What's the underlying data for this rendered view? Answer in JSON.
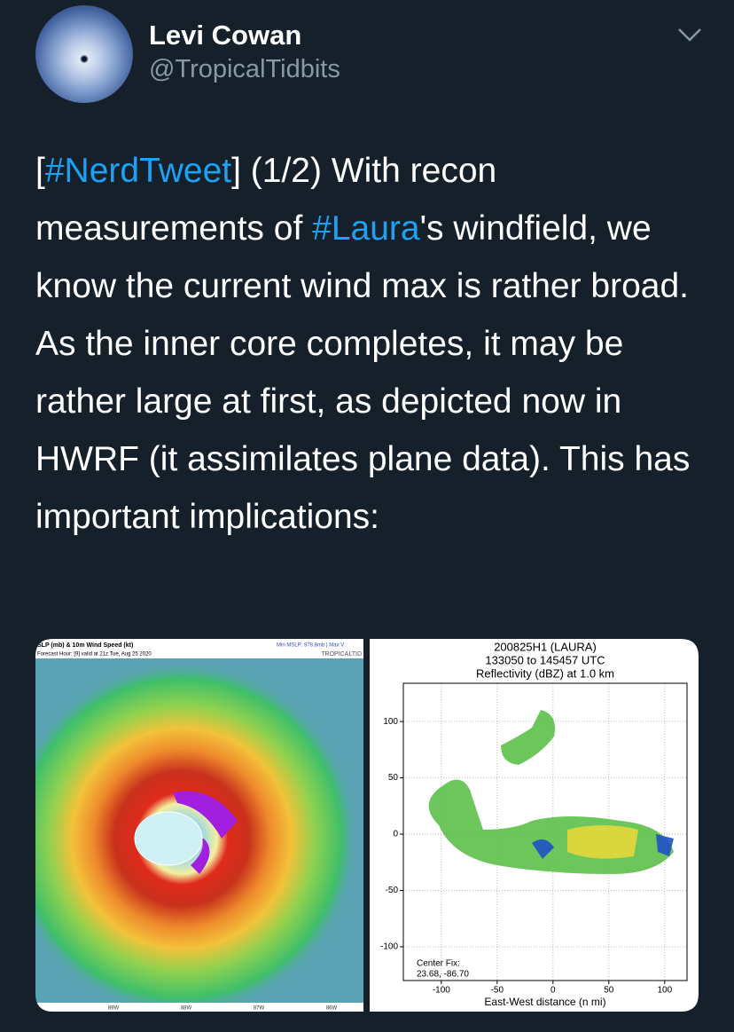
{
  "tweet": {
    "name": "Levi Cowan",
    "handle": "@TropicalTidbits",
    "text": [
      {
        "text": "[",
        "hashtag": false
      },
      {
        "text": "#NerdTweet",
        "hashtag": true
      },
      {
        "text": "] (1/2) With recon measurements of ",
        "hashtag": false
      },
      {
        "text": "#Laura",
        "hashtag": true
      },
      {
        "text": "'s windfield, we know the current wind max is rather broad. As the inner core completes, it may be rather large at first, as depicted now in HWRF (it assimilates plane data). This has important implications:",
        "hashtag": false
      }
    ]
  },
  "map_image": {
    "title": "SLP (mb) & 10m Wind Speed (kt)",
    "subtitle": "Forecast Hour: [9]  valid at 21z Tue, Aug 25 2020",
    "info": "Min MSLP: 978.8mb | Max V",
    "credit": "TROPICALTID",
    "lon_labels": [
      "89W",
      "88W",
      "87W",
      "86W"
    ]
  },
  "chart_data": {
    "type": "scatter",
    "title": [
      "200825H1 (LAURA)",
      "133050 to 145457 UTC",
      "Reflectivity (dBZ) at 1.0 km"
    ],
    "xlabel": "East-West distance (n mi)",
    "annotation": [
      "Center Fix:",
      "23.68, -86.70"
    ],
    "xlim": [
      -134,
      120
    ],
    "ylim": [
      -130,
      134
    ],
    "xticks": [
      -100,
      -50,
      0,
      50,
      100
    ],
    "yticks": [
      100,
      50,
      0,
      -50,
      -100
    ]
  }
}
